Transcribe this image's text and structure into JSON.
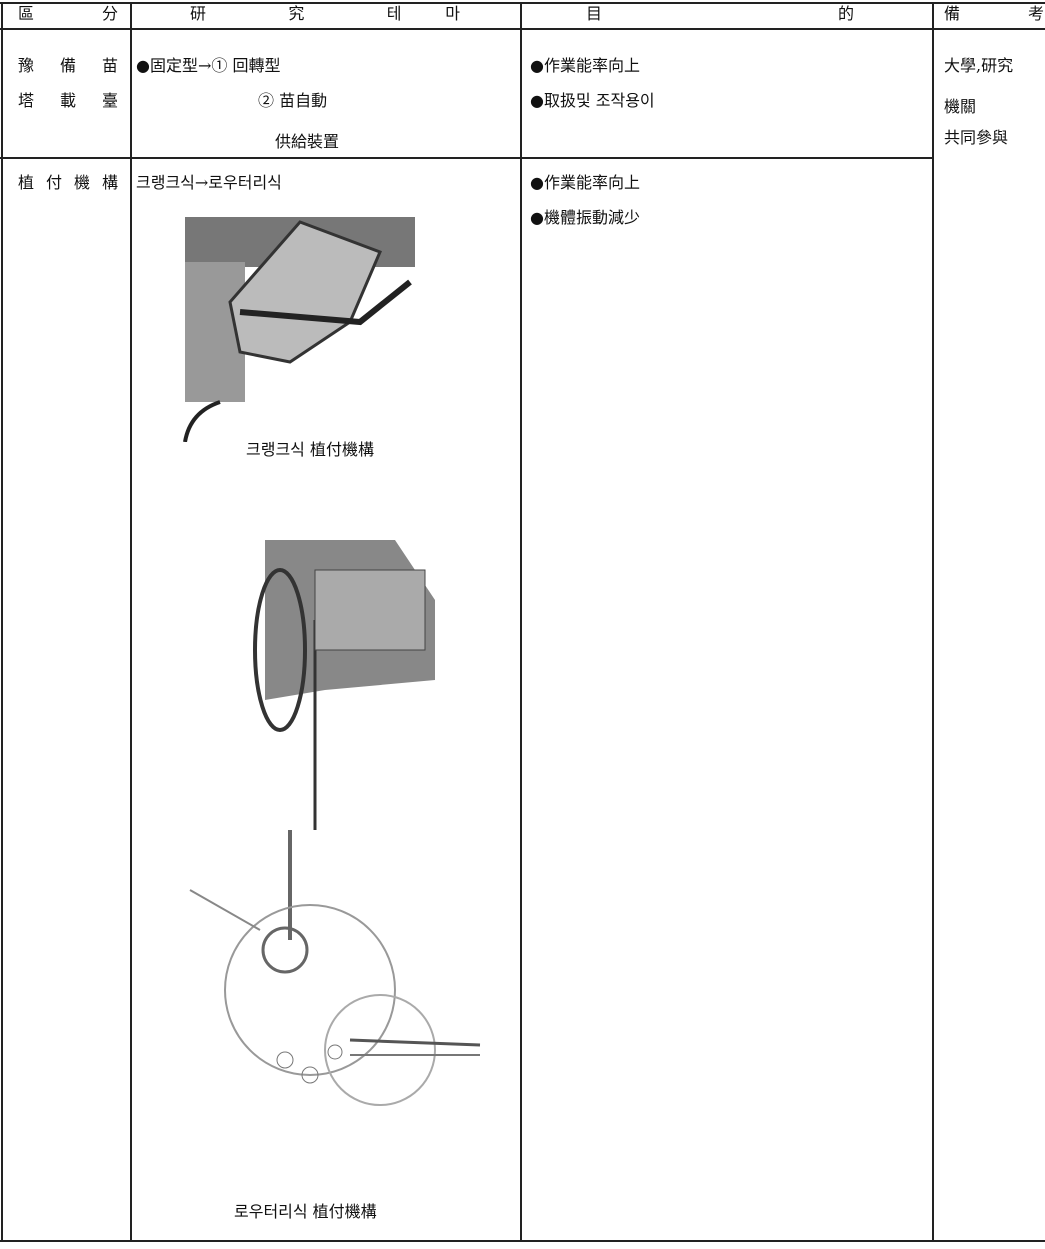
{
  "table": {
    "header": [
      "區 分",
      "研 究 테 마",
      "目 的",
      "備 考"
    ],
    "rows": [
      {
        "category": [
          "豫 備 苗",
          "塔 載 臺"
        ],
        "research": [
          "●固定型→① 回轉型",
          "② 苗自動",
          "供給裝置"
        ],
        "purpose": [
          "●作業能率向上",
          "●取扱및 조작용이"
        ]
      },
      {
        "category": [
          "植 付 機 構"
        ],
        "research": [
          "크랭크식→로우터리식"
        ],
        "captions": [
          "크랭크식 植付機構",
          "로우터리식 植付機構"
        ],
        "purpose": [
          "●作業能率向上",
          "●機體振動減少"
        ]
      }
    ],
    "note": [
      "大學,研究",
      "機關",
      "共同參與"
    ]
  }
}
